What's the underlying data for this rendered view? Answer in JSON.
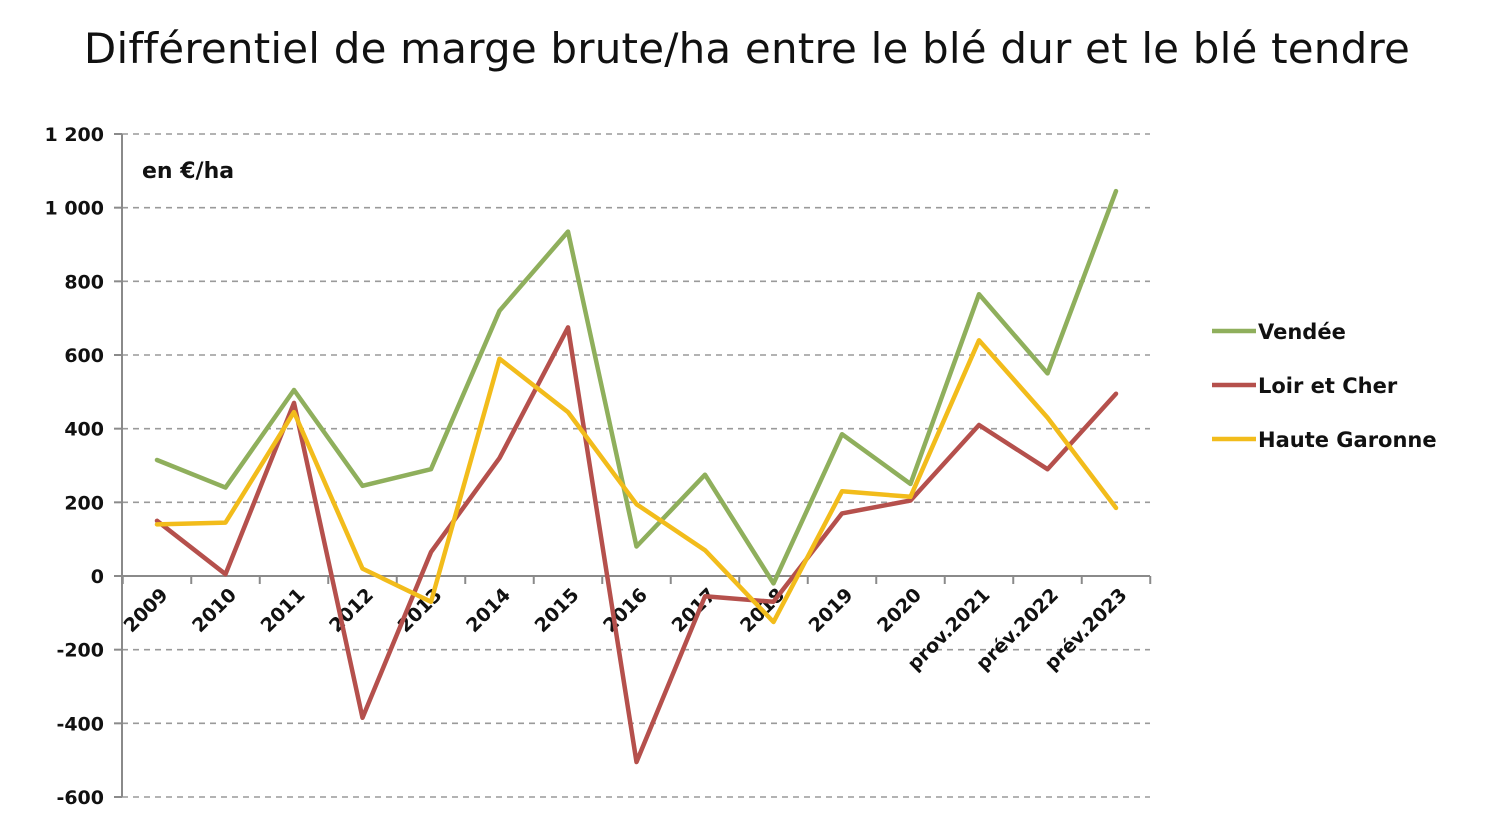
{
  "chart_data": {
    "type": "line",
    "title": "Différentiel de marge brute/ha entre le blé dur et le blé tendre",
    "unit_label": "en €/ha",
    "categories": [
      "2009",
      "2010",
      "2011",
      "2012",
      "2013",
      "2014",
      "2015",
      "2016",
      "2017",
      "2018",
      "2019",
      "2020",
      "prov.2021",
      "prév.2022",
      "prév.2023"
    ],
    "ylim": [
      -600,
      1200
    ],
    "yticks": [
      -600,
      -400,
      -200,
      0,
      200,
      400,
      600,
      800,
      1000,
      1200
    ],
    "ytick_labels": [
      "-600",
      "-400",
      "-200",
      "0",
      "200",
      "400",
      "600",
      "800",
      "1 000",
      "1 200"
    ],
    "grid": true,
    "legend_position": "right",
    "series": [
      {
        "name": "Vendée",
        "color": "#8faf5c",
        "values": [
          315,
          240,
          505,
          245,
          290,
          720,
          935,
          80,
          275,
          -20,
          385,
          250,
          765,
          550,
          1045
        ]
      },
      {
        "name": "Loir et Cher",
        "color": "#b5504c",
        "values": [
          150,
          5,
          470,
          -385,
          65,
          320,
          675,
          -505,
          -55,
          -70,
          170,
          205,
          410,
          290,
          495
        ]
      },
      {
        "name": "Haute Garonne",
        "color": "#f2bc1b",
        "values": [
          140,
          145,
          445,
          20,
          -70,
          590,
          445,
          195,
          70,
          -125,
          230,
          215,
          640,
          430,
          185
        ]
      }
    ]
  }
}
